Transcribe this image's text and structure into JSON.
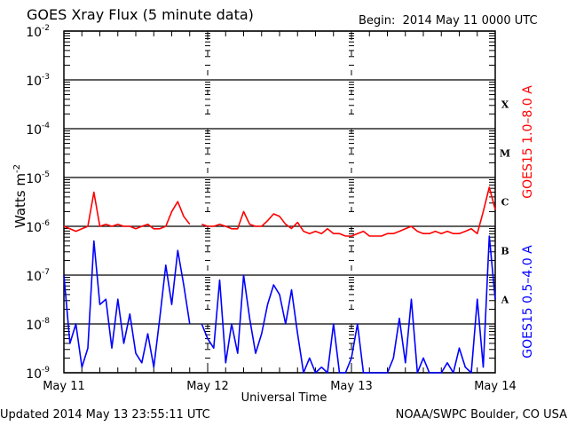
{
  "chart_data": {
    "type": "line",
    "title": "GOES Xray Flux (5 minute data)",
    "subtitle": "Begin:  2014 May 11 0000 UTC",
    "ylabel": "Watts m",
    "ylabel_sup": "-2",
    "xlabel": "Universal Time",
    "y_scale": "log",
    "ylim": [
      1e-09,
      0.01
    ],
    "y_ticks": [
      {
        "base": "10",
        "exp": "-2",
        "value": 0.01
      },
      {
        "base": "10",
        "exp": "-3",
        "value": 0.001
      },
      {
        "base": "10",
        "exp": "-4",
        "value": 0.0001
      },
      {
        "base": "10",
        "exp": "-5",
        "value": 1e-05
      },
      {
        "base": "10",
        "exp": "-6",
        "value": 1e-06
      },
      {
        "base": "10",
        "exp": "-7",
        "value": 1e-07
      },
      {
        "base": "10",
        "exp": "-8",
        "value": 1e-08
      },
      {
        "base": "10",
        "exp": "-9",
        "value": 1e-09
      }
    ],
    "xlim": [
      "2014-05-11 00:00",
      "2014-05-14 00:00"
    ],
    "x_ticks": [
      {
        "label": "May 11",
        "value": "2014-05-11 00:00"
      },
      {
        "label": "May 12",
        "value": "2014-05-12 00:00"
      },
      {
        "label": "May 13",
        "value": "2014-05-13 00:00"
      },
      {
        "label": "May 14",
        "value": "2014-05-14 00:00"
      }
    ],
    "flare_classes": [
      {
        "label": "X",
        "min": 0.0001,
        "max": 0.001
      },
      {
        "label": "M",
        "min": 1e-05,
        "max": 0.0001
      },
      {
        "label": "C",
        "min": 1e-06,
        "max": 1e-05
      },
      {
        "label": "B",
        "min": 1e-07,
        "max": 1e-06
      },
      {
        "label": "A",
        "min": 1e-08,
        "max": 1e-07
      }
    ],
    "grid": "horizontal lines at each decade, dashed vertical lines at day boundaries",
    "x": [
      "2014-05-11 00:00",
      "2014-05-11 01:00",
      "2014-05-11 02:00",
      "2014-05-11 03:00",
      "2014-05-11 04:00",
      "2014-05-11 05:00",
      "2014-05-11 06:00",
      "2014-05-11 07:00",
      "2014-05-11 08:00",
      "2014-05-11 09:00",
      "2014-05-11 10:00",
      "2014-05-11 11:00",
      "2014-05-11 12:00",
      "2014-05-11 13:00",
      "2014-05-11 14:00",
      "2014-05-11 15:00",
      "2014-05-11 16:00",
      "2014-05-11 17:00",
      "2014-05-11 18:00",
      "2014-05-11 19:00",
      "2014-05-11 20:00",
      "2014-05-11 21:00",
      "2014-05-11 22:00",
      "2014-05-11 23:00",
      "2014-05-12 00:00",
      "2014-05-12 01:00",
      "2014-05-12 02:00",
      "2014-05-12 03:00",
      "2014-05-12 04:00",
      "2014-05-12 05:00",
      "2014-05-12 06:00",
      "2014-05-12 07:00",
      "2014-05-12 08:00",
      "2014-05-12 09:00",
      "2014-05-12 10:00",
      "2014-05-12 11:00",
      "2014-05-12 12:00",
      "2014-05-12 13:00",
      "2014-05-12 14:00",
      "2014-05-12 15:00",
      "2014-05-12 16:00",
      "2014-05-12 17:00",
      "2014-05-12 18:00",
      "2014-05-12 19:00",
      "2014-05-12 20:00",
      "2014-05-12 21:00",
      "2014-05-12 22:00",
      "2014-05-12 23:00",
      "2014-05-13 00:00",
      "2014-05-13 01:00",
      "2014-05-13 02:00",
      "2014-05-13 03:00",
      "2014-05-13 04:00",
      "2014-05-13 05:00",
      "2014-05-13 06:00",
      "2014-05-13 07:00",
      "2014-05-13 08:00",
      "2014-05-13 09:00",
      "2014-05-13 10:00",
      "2014-05-13 11:00",
      "2014-05-13 12:00",
      "2014-05-13 13:00",
      "2014-05-13 14:00",
      "2014-05-13 15:00",
      "2014-05-13 16:00",
      "2014-05-13 17:00",
      "2014-05-13 18:00",
      "2014-05-13 19:00",
      "2014-05-13 20:00",
      "2014-05-13 21:00",
      "2014-05-13 22:00",
      "2014-05-13 23:00",
      "2014-05-14 00:00"
    ],
    "series": [
      {
        "name": "GOES15 1.0–8.0 A",
        "color": "#ff0000",
        "values": [
          1e-06,
          8.9e-07,
          7.9e-07,
          8.9e-07,
          1e-06,
          5e-06,
          1e-06,
          1.1e-06,
          1e-06,
          1.1e-06,
          1e-06,
          1e-06,
          8.9e-07,
          1e-06,
          1.1e-06,
          8.9e-07,
          8.9e-07,
          1e-06,
          2e-06,
          3.2e-06,
          1.6e-06,
          1.1e-06,
          null,
          1.1e-06,
          1e-06,
          1e-06,
          1.1e-06,
          1e-06,
          8.9e-07,
          8.9e-07,
          2e-06,
          1.1e-06,
          1e-06,
          1e-06,
          1.3e-06,
          1.8e-06,
          1.6e-06,
          1.1e-06,
          9e-07,
          1.2e-06,
          7.9e-07,
          7.1e-07,
          7.9e-07,
          7.1e-07,
          8.9e-07,
          7.1e-07,
          7.1e-07,
          6.3e-07,
          6.3e-07,
          7.1e-07,
          7.9e-07,
          6.3e-07,
          6.3e-07,
          6.3e-07,
          7.1e-07,
          7.1e-07,
          7.9e-07,
          8.9e-07,
          1e-06,
          7.9e-07,
          7.1e-07,
          7.1e-07,
          7.9e-07,
          7.1e-07,
          7.9e-07,
          7.1e-07,
          7.1e-07,
          7.9e-07,
          8.9e-07,
          7.1e-07,
          2e-06,
          6.3e-06,
          2.2e-06
        ]
      },
      {
        "name": "GOES15 0.5–4.0 A",
        "color": "#0000ff",
        "values": [
          1e-07,
          4e-09,
          1e-08,
          1.3e-09,
          3.2e-09,
          5e-07,
          2.5e-08,
          3.2e-08,
          3.2e-09,
          3.2e-08,
          4e-09,
          1.6e-08,
          2.5e-09,
          1.6e-09,
          6.3e-09,
          1.3e-09,
          1.3e-08,
          1.6e-07,
          2.5e-08,
          3.2e-07,
          6.3e-08,
          1e-08,
          null,
          1e-08,
          5e-09,
          3.2e-09,
          7.9e-08,
          1.6e-09,
          1e-08,
          2.5e-09,
          1e-07,
          1.3e-08,
          2.5e-09,
          6.3e-09,
          2.5e-08,
          6.3e-08,
          4e-08,
          1e-08,
          5e-08,
          6.3e-09,
          1e-09,
          2e-09,
          1e-09,
          1.3e-09,
          1e-09,
          1e-08,
          1e-09,
          1e-09,
          2e-09,
          1e-08,
          1e-09,
          1e-09,
          1e-09,
          1e-09,
          1e-09,
          2e-09,
          1.3e-08,
          1.6e-09,
          3.2e-08,
          1e-09,
          2e-09,
          1e-09,
          1e-09,
          1e-09,
          1.6e-09,
          1e-09,
          3.2e-09,
          1.3e-09,
          1e-09,
          3.2e-08,
          1.3e-09,
          6.3e-07,
          3.2e-08
        ]
      }
    ]
  },
  "footer": {
    "updated": "Updated 2014 May 13 23:55:11 UTC",
    "source": "NOAA/SWPC Boulder, CO USA"
  }
}
